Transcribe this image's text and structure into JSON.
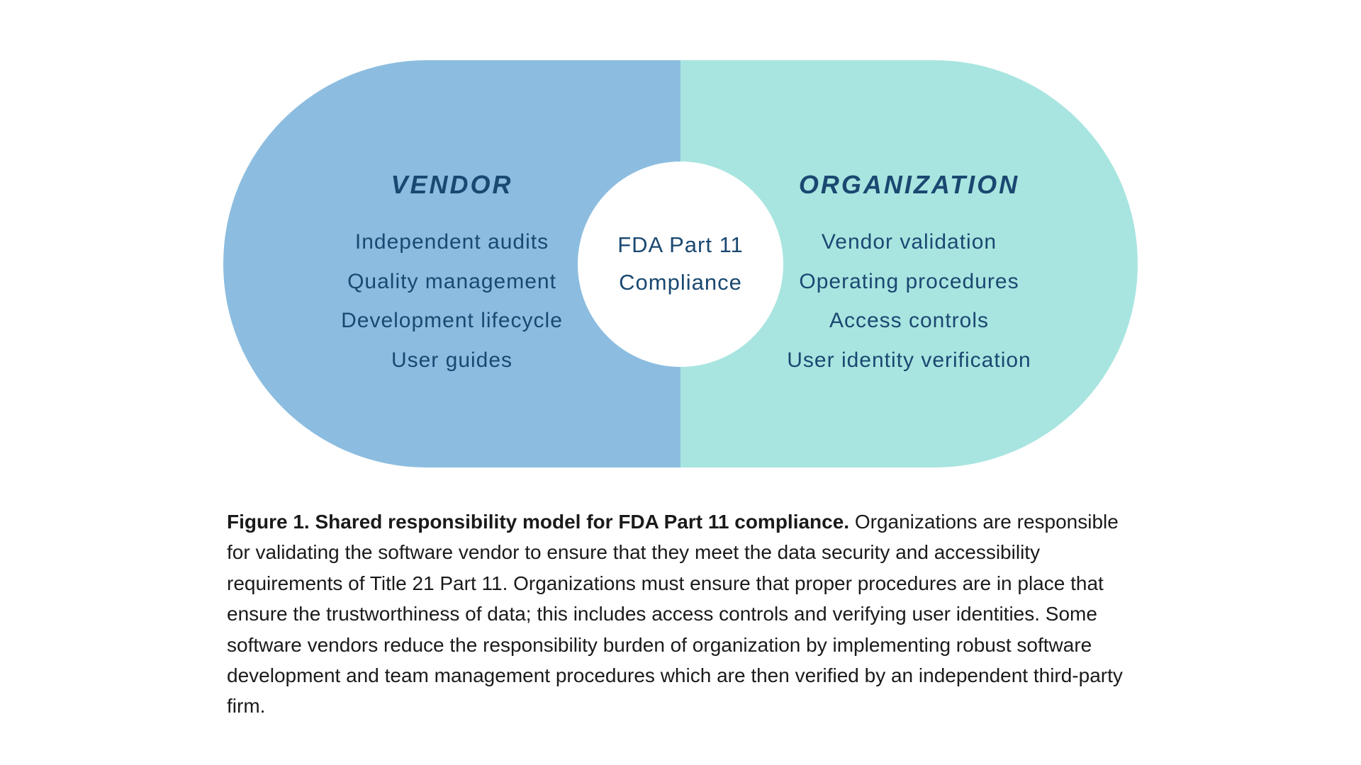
{
  "diagram": {
    "type": "infographic",
    "background_color": "#ffffff",
    "left": {
      "title": "VENDOR",
      "items": [
        "Independent audits",
        "Quality management",
        "Development lifecycle",
        "User guides"
      ],
      "fill_color": "#8cbde0",
      "title_color": "#1a4871",
      "item_color": "#1a4871"
    },
    "right": {
      "title": "ORGANIZATION",
      "items": [
        "Vendor validation",
        "Operating procedures",
        "Access controls",
        "User identity verification"
      ],
      "fill_color": "#a9e5e0",
      "title_color": "#1a4871",
      "item_color": "#1a4871"
    },
    "center": {
      "line1": "FDA Part 11",
      "line2": "Compliance",
      "circle_color": "#ffffff",
      "text_color": "#1a4871"
    }
  },
  "caption": {
    "bold": "Figure 1. Shared responsibility model for FDA Part 11 compliance.",
    "body": " Organizations are responsible for validating the software vendor to ensure that they meet the data security and accessibility requirements of Title 21 Part 11. Organizations must ensure that proper procedures are in place that ensure the trustworthiness of data; this includes access controls and verifying user identities. Some software vendors reduce the responsibility burden of organization by implementing robust software development and team management procedures which are then verified by an independent third-party firm.",
    "text_color": "#1a1a1a",
    "fontsize": 28
  }
}
